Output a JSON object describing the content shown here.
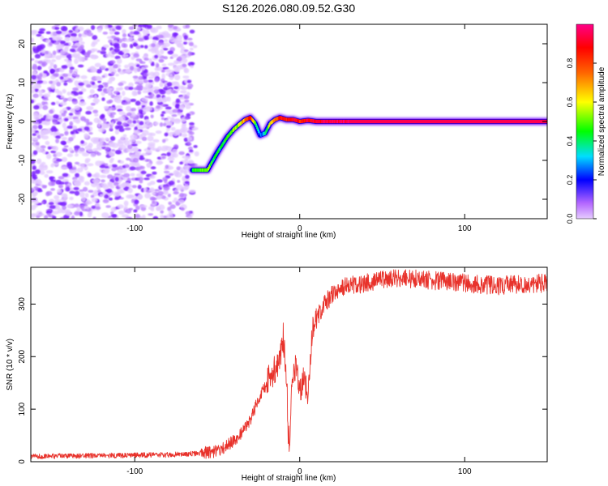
{
  "figure": {
    "title": "S126.2026.080.09.52.G30"
  },
  "chart_data": [
    {
      "type": "heatmap",
      "title": "S126.2026.080.09.52.G30",
      "xlabel": "Height of straight line (km)",
      "ylabel": "Frequency (Hz)",
      "xlim": [
        -163,
        150
      ],
      "ylim": [
        -25,
        25
      ],
      "xticks": [
        -100,
        0,
        100
      ],
      "yticks": [
        -20,
        -10,
        0,
        10,
        20
      ],
      "noise_region_x": [
        -163,
        -65
      ],
      "colorbar": {
        "label": "Normalized spectral amplitude",
        "range": [
          0,
          1
        ],
        "ticks": [
          0.0,
          0.2,
          0.4,
          0.6,
          0.8
        ],
        "colors": [
          "#e6ccff",
          "#8800ff",
          "#0000ff",
          "#00ddff",
          "#00ff00",
          "#ffff00",
          "#ff6600",
          "#ff0000",
          "#ff0088"
        ]
      },
      "ridge": {
        "x": [
          -65,
          -56,
          -50,
          -44,
          -40,
          -36,
          -33,
          -30,
          -27,
          -24,
          -21,
          -18,
          -15,
          -12,
          -8,
          -4,
          0,
          5,
          10,
          15,
          20,
          25,
          30,
          40,
          60,
          80,
          100,
          120,
          150
        ],
        "y": [
          -12.5,
          -12.5,
          -8,
          -4,
          -2,
          -0.5,
          0.5,
          1,
          -0.5,
          -3.5,
          -3,
          -0.5,
          0.5,
          1,
          0.5,
          0.5,
          0,
          0.3,
          0,
          0,
          0,
          0,
          0,
          0,
          0,
          0,
          0,
          0,
          0
        ],
        "amp": [
          0.5,
          0.55,
          0.45,
          0.5,
          0.55,
          0.6,
          0.75,
          0.85,
          0.5,
          0.3,
          0.4,
          0.6,
          0.75,
          0.85,
          0.85,
          0.9,
          0.85,
          0.9,
          0.9,
          0.95,
          0.95,
          0.95,
          0.95,
          0.95,
          0.95,
          0.95,
          0.95,
          0.95,
          0.95
        ]
      }
    },
    {
      "type": "line",
      "xlabel": "Height of straight line (km)",
      "ylabel": "SNR (10 * v/v)",
      "xlim": [
        -163,
        150
      ],
      "ylim": [
        0,
        370
      ],
      "xticks": [
        -100,
        0,
        100
      ],
      "yticks": [
        0,
        100,
        200,
        300
      ],
      "color": "#e8322b",
      "series": [
        {
          "name": "SNR",
          "x": [
            -163,
            -140,
            -110,
            -80,
            -60,
            -50,
            -45,
            -40,
            -35,
            -30,
            -25,
            -20,
            -15,
            -12,
            -10,
            -8,
            -7,
            -6,
            -5,
            -3,
            0,
            3,
            5,
            7,
            8,
            10,
            15,
            20,
            25,
            30,
            40,
            50,
            60,
            80,
            100,
            120,
            150
          ],
          "y": [
            10,
            11,
            12,
            13,
            16,
            20,
            30,
            40,
            55,
            80,
            120,
            150,
            175,
            190,
            240,
            170,
            60,
            15,
            120,
            180,
            140,
            155,
            110,
            220,
            250,
            270,
            300,
            320,
            330,
            335,
            340,
            345,
            350,
            345,
            340,
            335,
            340
          ]
        }
      ]
    }
  ]
}
